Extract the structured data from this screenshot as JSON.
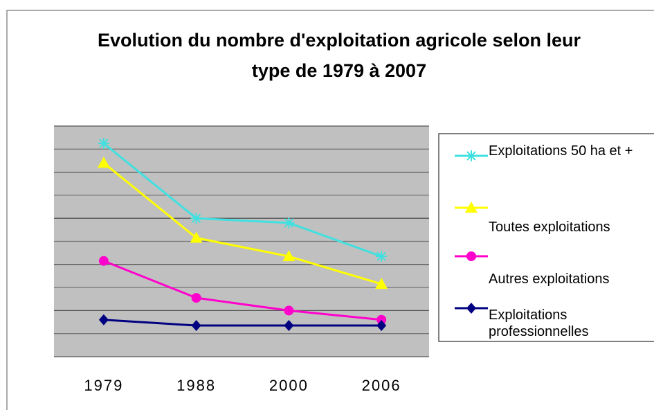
{
  "chart_data": {
    "type": "line",
    "title": "Evolution du nombre d'exploitation agricole selon leur type de 1979 à 2007",
    "categories": [
      "1979",
      "1988",
      "2000",
      "2006"
    ],
    "series": [
      {
        "name": "Exploitations 50 ha et +",
        "color": "#40e0e0",
        "marker": "star",
        "values": [
          9.25,
          6.0,
          5.8,
          4.35
        ]
      },
      {
        "name": "Toutes exploitations",
        "color": "#ffff00",
        "marker": "triangle",
        "values": [
          8.4,
          5.15,
          4.35,
          3.15
        ]
      },
      {
        "name": "Autres exploitations",
        "color": "#ff00cc",
        "marker": "circle",
        "values": [
          4.15,
          2.55,
          2.0,
          1.6
        ]
      },
      {
        "name": "Exploitations professionnelles",
        "color": "#000080",
        "marker": "diamond",
        "values": [
          1.6,
          1.35,
          1.35,
          1.35
        ]
      }
    ],
    "ylim": [
      0,
      10
    ],
    "yticks": [
      0,
      1,
      2,
      3,
      4,
      5,
      6,
      7,
      8,
      9,
      10
    ],
    "grid": true,
    "legend": "right"
  }
}
